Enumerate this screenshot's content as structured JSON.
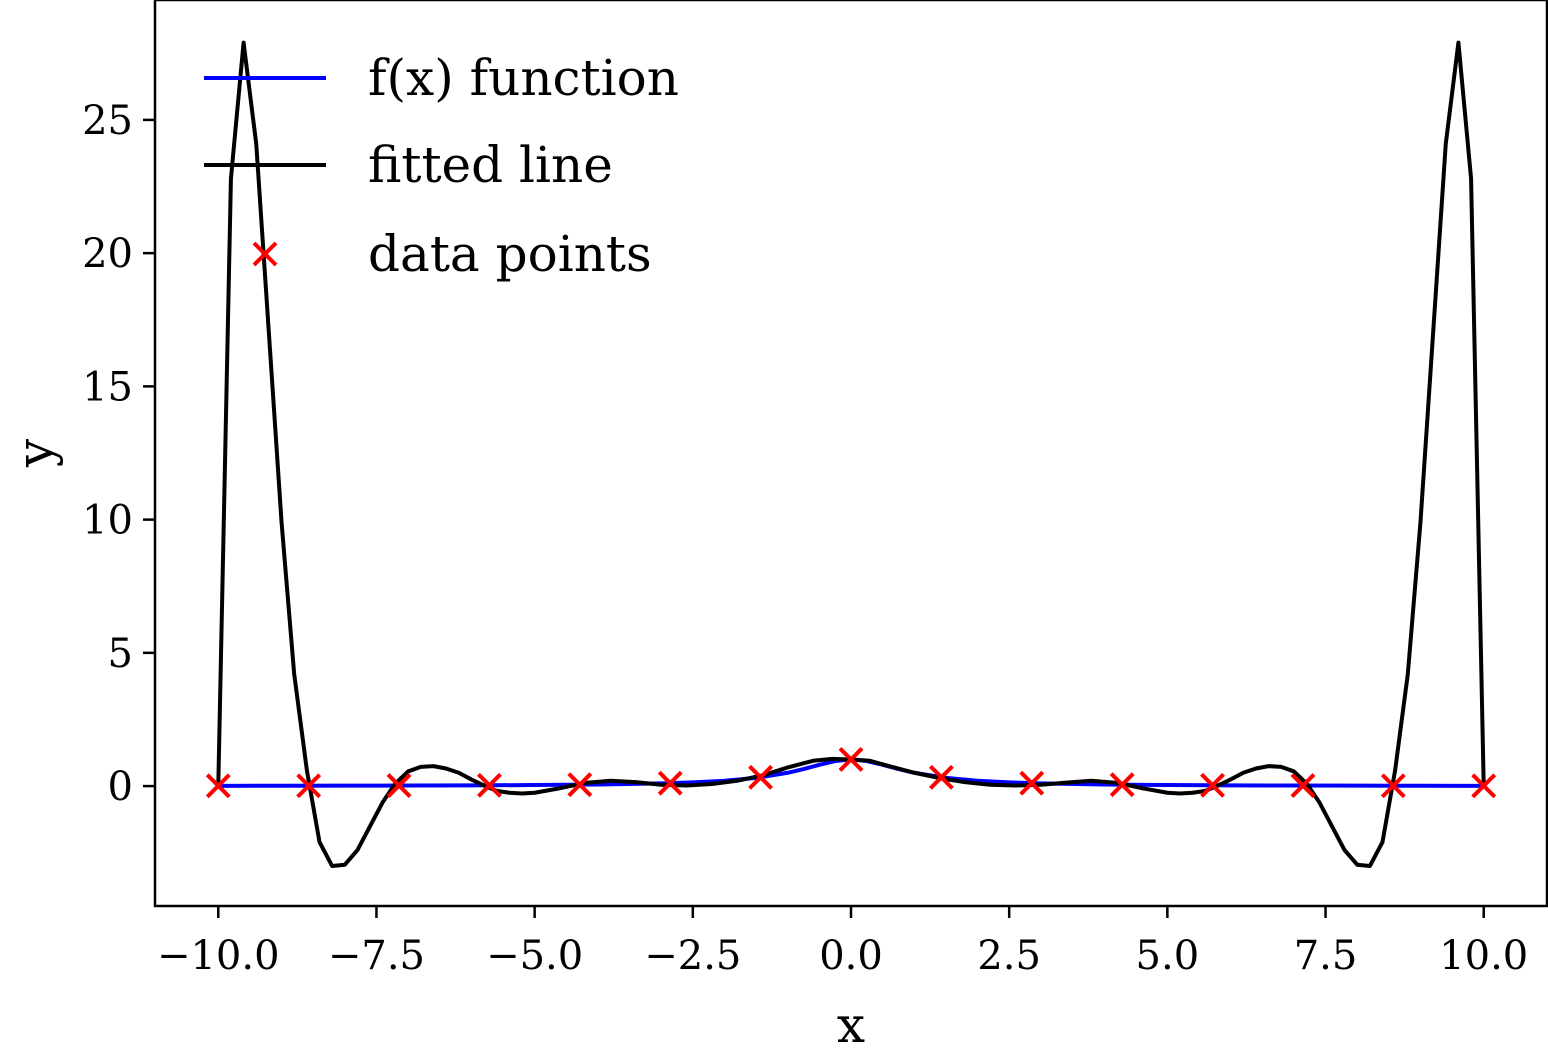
{
  "chart_data": {
    "type": "line",
    "title": "",
    "xlabel": "x",
    "ylabel": "y",
    "xlim": [
      -11.0,
      11.0
    ],
    "ylim": [
      -4.5,
      29.5
    ],
    "xticks": [
      -10.0,
      -7.5,
      -5.0,
      -2.5,
      0.0,
      2.5,
      5.0,
      7.5,
      10.0
    ],
    "xtick_labels": [
      "−10.0",
      "−7.5",
      "−5.0",
      "−2.5",
      "0.0",
      "2.5",
      "5.0",
      "7.5",
      "10.0"
    ],
    "yticks": [
      0,
      5,
      10,
      15,
      20,
      25
    ],
    "ytick_labels": [
      "0",
      "5",
      "10",
      "15",
      "20",
      "25"
    ],
    "grid": false,
    "legend": {
      "placement": "top-left",
      "entries": [
        {
          "label": "f(x) function",
          "marker": "line",
          "color": "#0000ff"
        },
        {
          "label": "fitted line",
          "marker": "line",
          "color": "#000000"
        },
        {
          "label": "data points",
          "marker": "x",
          "color": "#ff0000"
        }
      ]
    },
    "series": [
      {
        "name": "f(x) function",
        "kind": "line",
        "color": "#0000ff",
        "x": [
          -10.0,
          -9.0,
          -8.0,
          -7.0,
          -6.0,
          -5.0,
          -4.0,
          -3.0,
          -2.5,
          -2.0,
          -1.5,
          -1.0,
          -0.75,
          -0.5,
          -0.25,
          0.0,
          0.25,
          0.5,
          0.75,
          1.0,
          1.5,
          2.0,
          2.5,
          3.0,
          4.0,
          5.0,
          6.0,
          7.0,
          8.0,
          9.0,
          10.0
        ],
        "y": [
          0.0099,
          0.0122,
          0.0154,
          0.02,
          0.027,
          0.0385,
          0.0588,
          0.1,
          0.1379,
          0.2,
          0.3077,
          0.5,
          0.64,
          0.8,
          0.9412,
          1.0,
          0.9412,
          0.8,
          0.64,
          0.5,
          0.3077,
          0.2,
          0.1379,
          0.1,
          0.0588,
          0.0385,
          0.027,
          0.02,
          0.0154,
          0.0122,
          0.0099
        ]
      },
      {
        "name": "fitted line",
        "kind": "line",
        "color": "#000000",
        "x": [
          -10.0,
          -9.8,
          -9.6,
          -9.4,
          -9.2,
          -9.0,
          -8.8,
          -8.6,
          -8.4,
          -8.2,
          -8.0,
          -7.8,
          -7.6,
          -7.4,
          -7.2,
          -7.0,
          -6.8,
          -6.6,
          -6.4,
          -6.2,
          -6.0,
          -5.8,
          -5.6,
          -5.4,
          -5.2,
          -5.0,
          -4.6,
          -4.2,
          -3.8,
          -3.4,
          -3.0,
          -2.6,
          -2.2,
          -1.8,
          -1.4,
          -1.0,
          -0.6,
          -0.3,
          0.0,
          0.3,
          0.6,
          1.0,
          1.4,
          1.8,
          2.2,
          2.6,
          3.0,
          3.4,
          3.8,
          4.2,
          4.6,
          5.0,
          5.2,
          5.4,
          5.6,
          5.8,
          6.0,
          6.2,
          6.4,
          6.6,
          6.8,
          7.0,
          7.2,
          7.4,
          7.6,
          7.8,
          8.0,
          8.2,
          8.4,
          8.6,
          8.8,
          9.0,
          9.2,
          9.4,
          9.6,
          9.8,
          10.0
        ],
        "y": [
          0.0,
          22.8,
          27.9,
          24.1,
          17.0,
          9.9,
          4.2,
          0.6,
          -2.1,
          -3.0,
          -2.95,
          -2.4,
          -1.5,
          -0.6,
          0.1,
          0.55,
          0.72,
          0.75,
          0.66,
          0.5,
          0.25,
          0.02,
          -0.18,
          -0.25,
          -0.28,
          -0.25,
          -0.08,
          0.12,
          0.2,
          0.15,
          0.05,
          0.02,
          0.08,
          0.2,
          0.4,
          0.7,
          0.95,
          1.02,
          1.0,
          0.95,
          0.75,
          0.5,
          0.3,
          0.15,
          0.05,
          0.02,
          0.05,
          0.13,
          0.2,
          0.12,
          -0.08,
          -0.25,
          -0.28,
          -0.25,
          -0.18,
          0.02,
          0.25,
          0.5,
          0.66,
          0.75,
          0.72,
          0.55,
          0.1,
          -0.6,
          -1.5,
          -2.4,
          -2.95,
          -3.0,
          -2.1,
          0.6,
          4.2,
          9.9,
          17.0,
          24.1,
          27.9,
          22.8,
          0.0
        ]
      },
      {
        "name": "data points",
        "kind": "scatter",
        "marker": "x",
        "color": "#ff0000",
        "x": [
          -10.0,
          -8.571,
          -7.143,
          -5.714,
          -4.286,
          -2.857,
          -1.429,
          0.0,
          1.429,
          2.857,
          4.286,
          5.714,
          7.143,
          8.571,
          10.0
        ],
        "y": [
          0.0099,
          0.0134,
          0.0192,
          0.0297,
          0.0516,
          0.1092,
          0.3288,
          1.0,
          0.3288,
          0.1092,
          0.0516,
          0.0297,
          0.0192,
          0.0134,
          0.0099
        ]
      }
    ]
  }
}
